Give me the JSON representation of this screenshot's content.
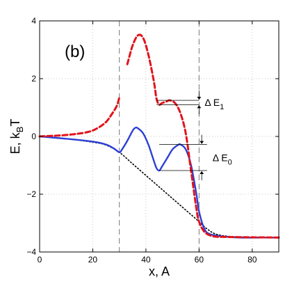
{
  "chart_data": {
    "type": "line",
    "panel_label": "(b)",
    "xlabel": "x, A",
    "ylabel": {
      "main": "E, k",
      "sub": "B",
      "tail": "T"
    },
    "xlim": [
      0,
      90
    ],
    "ylim": [
      -4,
      4
    ],
    "x_ticks": [
      0,
      20,
      40,
      60,
      80
    ],
    "y_ticks": [
      -4,
      -2,
      0,
      2,
      4
    ],
    "x_tick_labels": [
      "0",
      "20",
      "40",
      "60",
      "80"
    ],
    "y_tick_labels": [
      "−4",
      "−2",
      "0",
      "2",
      "4"
    ],
    "grid": true,
    "vlines": [
      30,
      60
    ],
    "series": [
      {
        "style": "dotted",
        "color": "#000000",
        "segments": [
          [
            [
              0,
              0
            ],
            [
              10,
              -0.08
            ],
            [
              20,
              -0.2
            ],
            [
              25,
              -0.3
            ],
            [
              30,
              -0.55
            ],
            [
              35,
              -0.95
            ],
            [
              40,
              -1.35
            ],
            [
              45,
              -1.75
            ],
            [
              50,
              -2.15
            ],
            [
              55,
              -2.55
            ],
            [
              60,
              -2.95
            ],
            [
              63,
              -3.2
            ],
            [
              67,
              -3.4
            ],
            [
              75,
              -3.48
            ],
            [
              90,
              -3.5
            ]
          ]
        ]
      },
      {
        "style": "solid",
        "color": "#2b3fd6",
        "segments": [
          [
            [
              0,
              0
            ],
            [
              10,
              -0.08
            ],
            [
              20,
              -0.18
            ],
            [
              25,
              -0.28
            ],
            [
              28,
              -0.42
            ],
            [
              30,
              -0.55
            ],
            [
              31,
              -0.45
            ],
            [
              33,
              -0.15
            ],
            [
              35,
              0.2
            ],
            [
              36,
              0.3
            ],
            [
              37,
              0.28
            ],
            [
              39,
              0.1
            ],
            [
              41,
              -0.3
            ],
            [
              43,
              -0.85
            ],
            [
              44,
              -1.1
            ],
            [
              45,
              -1.18
            ],
            [
              46,
              -1.05
            ],
            [
              48,
              -0.75
            ],
            [
              50,
              -0.45
            ],
            [
              52,
              -0.3
            ],
            [
              53,
              -0.28
            ],
            [
              55,
              -0.45
            ],
            [
              57,
              -1.0
            ],
            [
              59,
              -2.0
            ],
            [
              60,
              -2.6
            ],
            [
              62,
              -3.2
            ],
            [
              64,
              -3.38
            ],
            [
              68,
              -3.45
            ],
            [
              75,
              -3.5
            ],
            [
              90,
              -3.5
            ]
          ]
        ]
      },
      {
        "style": "dashed",
        "color": "#e0141c",
        "segments": [
          [
            [
              0,
              0
            ],
            [
              10,
              0.05
            ],
            [
              18,
              0.15
            ],
            [
              22,
              0.3
            ],
            [
              25,
              0.5
            ],
            [
              27,
              0.75
            ],
            [
              29,
              1.05
            ],
            [
              30,
              1.35
            ]
          ],
          [
            [
              33,
              2.5
            ],
            [
              35,
              3.15
            ],
            [
              37,
              3.5
            ],
            [
              39,
              3.4
            ],
            [
              41,
              2.8
            ],
            [
              43,
              1.9
            ],
            [
              44,
              1.3
            ],
            [
              45,
              1.1
            ],
            [
              46,
              1.15
            ],
            [
              48,
              1.22
            ],
            [
              49,
              1.25
            ],
            [
              51,
              1.15
            ],
            [
              53,
              0.8
            ],
            [
              55,
              0.1
            ],
            [
              57,
              -1.2
            ],
            [
              59,
              -2.5
            ],
            [
              60,
              -2.95
            ],
            [
              62,
              -3.3
            ],
            [
              65,
              -3.45
            ],
            [
              70,
              -3.48
            ],
            [
              90,
              -3.5
            ]
          ]
        ]
      }
    ],
    "annotations": [
      {
        "label": "Δ E",
        "sub": "1",
        "x_line": [
          44,
          60
        ],
        "y_top": 1.25,
        "y_bottom": 1.1,
        "arrow_x": 60
      },
      {
        "label": "Δ E",
        "sub": "0",
        "x_line": [
          45,
          63
        ],
        "y_top": -0.28,
        "y_bottom": -1.18,
        "arrow_x": 61
      }
    ]
  }
}
